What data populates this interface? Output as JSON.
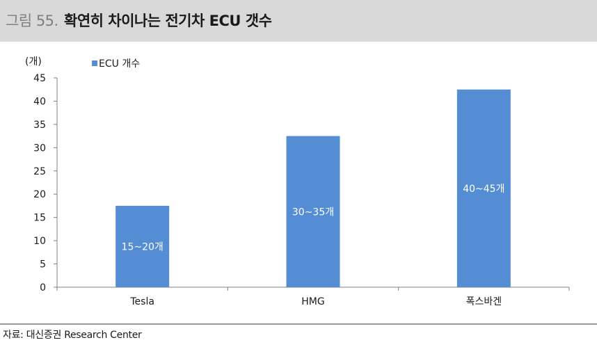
{
  "header": {
    "figure_prefix": "그림 55.",
    "title": "확연히 차이나는 전기차 ECU 갯수"
  },
  "source": "자료: 대신증권 Research Center",
  "colors": {
    "bar": "#548dd4",
    "header_bg": "#d9d9d9"
  },
  "chart_data": {
    "type": "bar",
    "categories": [
      "Tesla",
      "HMG",
      "폭스바겐"
    ],
    "series": [
      {
        "name": "ECU 개수",
        "values": [
          17.5,
          32.5,
          42.5
        ],
        "labels": [
          "15~20개",
          "30~35개",
          "40~45개"
        ]
      }
    ],
    "ylabel": "(개)",
    "ylim": [
      0,
      45
    ],
    "yticks": [
      0,
      5,
      10,
      15,
      20,
      25,
      30,
      35,
      40,
      45
    ],
    "grid": false,
    "legend": "top-left"
  }
}
